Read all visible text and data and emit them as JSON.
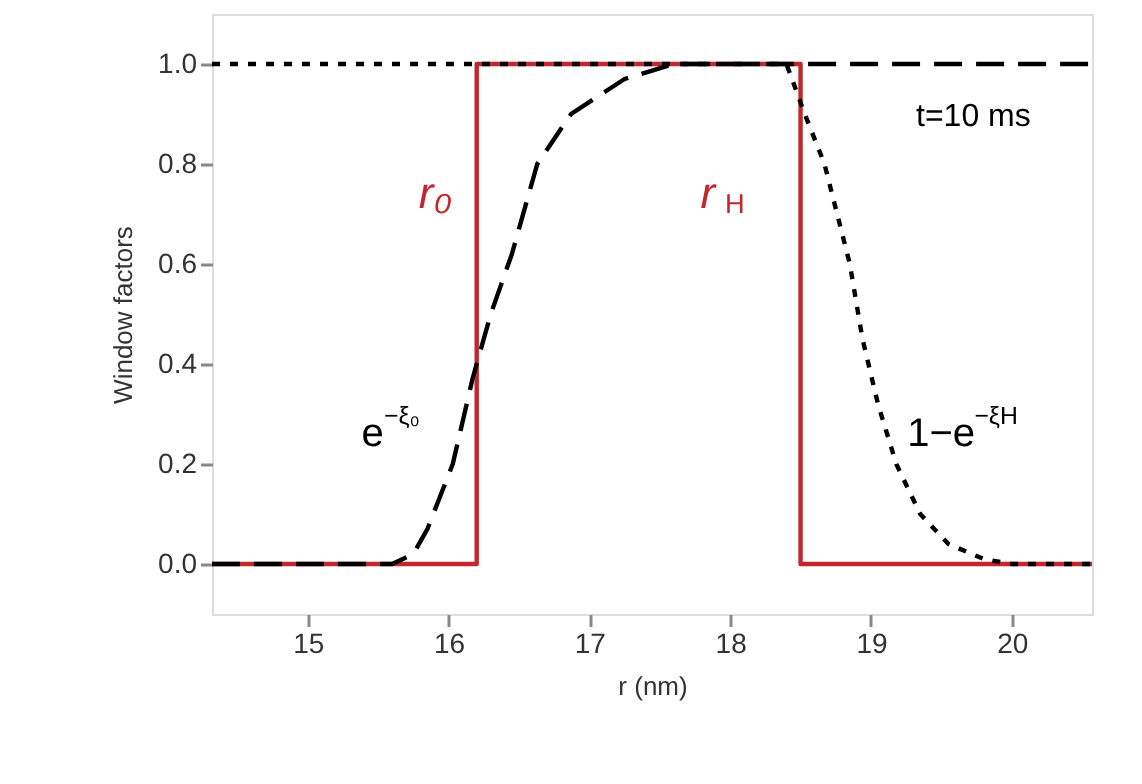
{
  "chart_data": {
    "type": "line",
    "xlabel": "r (nm)",
    "ylabel": "Window factors",
    "xlim": [
      14.32,
      20.57
    ],
    "ylim": [
      -0.1,
      1.1
    ],
    "xticks": [
      15,
      16,
      17,
      18,
      19,
      20
    ],
    "yticks": [
      {
        "value": 0,
        "label": "0.0"
      },
      0.2,
      0.4,
      0.6,
      0.8,
      {
        "value": 1,
        "label": "1.0"
      }
    ],
    "grid": false,
    "marker": "none",
    "series": [
      {
        "color": "#c0282d",
        "line_style": "solid",
        "x": [
          14.32,
          16.2,
          16.2,
          18.5,
          18.5,
          20.57
        ],
        "values": [
          0,
          0,
          1,
          1,
          0,
          0
        ]
      },
      {
        "color": "#000000",
        "line_style": "dashed",
        "x": [
          14.32,
          15.6,
          15.75,
          15.85,
          16.03,
          16.17,
          16.3,
          16.45,
          16.63,
          16.87,
          17.25,
          17.6,
          20.57
        ],
        "values": [
          0,
          0,
          0.02,
          0.07,
          0.2,
          0.37,
          0.5,
          0.62,
          0.8,
          0.9,
          0.97,
          1.0,
          1.0
        ]
      },
      {
        "color": "#000000",
        "line_style": "dotted",
        "x": [
          14.32,
          18.4,
          18.53,
          18.67,
          18.85,
          18.94,
          19.05,
          19.18,
          19.35,
          19.55,
          19.8,
          20.0,
          20.57
        ],
        "values": [
          1.0,
          1.0,
          0.9,
          0.8,
          0.6,
          0.45,
          0.32,
          0.2,
          0.1,
          0.04,
          0.01,
          0,
          0
        ]
      }
    ],
    "annotations": [
      "t=10 ms",
      "r₀",
      "r$_{H}$",
      "e$^{−ξ₀}$",
      "1−e$^{−ξH}$"
    ]
  }
}
